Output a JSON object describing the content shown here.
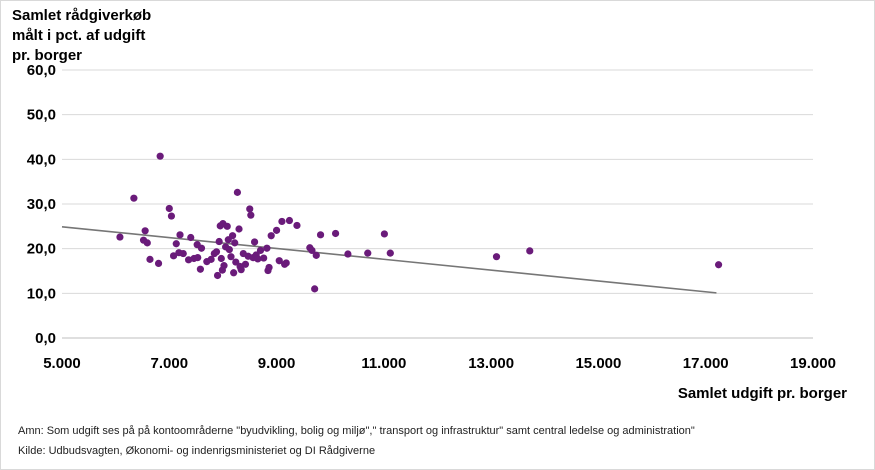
{
  "chart_data": {
    "type": "scatter",
    "ylabel": "Samlet rådgiverkøb\nmålt i pct. af  udgift\npr. borger",
    "xlabel": "Samlet udgift pr. borger",
    "xlim": [
      5000,
      19000
    ],
    "ylim": [
      0,
      60
    ],
    "x_ticks": [
      "5.000",
      "7.000",
      "9.000",
      "11.000",
      "13.000",
      "15.000",
      "17.000",
      "19.000"
    ],
    "y_ticks": [
      "0,0",
      "10,0",
      "20,0",
      "30,0",
      "40,0",
      "50,0",
      "60,0"
    ],
    "grid": "horizontal",
    "marker_color": "#6a1b7a",
    "trend_color": "#767676",
    "trendline": {
      "x": [
        5000,
        17200
      ],
      "y": [
        24.9,
        10.1
      ]
    },
    "points": [
      {
        "x": 6080,
        "y": 22.6
      },
      {
        "x": 6340,
        "y": 31.3
      },
      {
        "x": 6520,
        "y": 21.9
      },
      {
        "x": 6550,
        "y": 24.0
      },
      {
        "x": 6590,
        "y": 21.3
      },
      {
        "x": 6640,
        "y": 17.6
      },
      {
        "x": 6800,
        "y": 16.7
      },
      {
        "x": 6830,
        "y": 40.7
      },
      {
        "x": 7000,
        "y": 29.0
      },
      {
        "x": 7040,
        "y": 27.3
      },
      {
        "x": 7080,
        "y": 18.4
      },
      {
        "x": 7130,
        "y": 21.1
      },
      {
        "x": 7180,
        "y": 19.1
      },
      {
        "x": 7200,
        "y": 23.1
      },
      {
        "x": 7260,
        "y": 18.9
      },
      {
        "x": 7360,
        "y": 17.5
      },
      {
        "x": 7400,
        "y": 22.5
      },
      {
        "x": 7460,
        "y": 17.8
      },
      {
        "x": 7520,
        "y": 20.9
      },
      {
        "x": 7530,
        "y": 18.0
      },
      {
        "x": 7580,
        "y": 15.4
      },
      {
        "x": 7600,
        "y": 20.1
      },
      {
        "x": 7700,
        "y": 17.1
      },
      {
        "x": 7780,
        "y": 17.6
      },
      {
        "x": 7840,
        "y": 18.9
      },
      {
        "x": 7880,
        "y": 19.3
      },
      {
        "x": 7900,
        "y": 14.0
      },
      {
        "x": 7930,
        "y": 21.6
      },
      {
        "x": 7950,
        "y": 25.1
      },
      {
        "x": 7970,
        "y": 17.8
      },
      {
        "x": 7990,
        "y": 15.2
      },
      {
        "x": 8000,
        "y": 25.6
      },
      {
        "x": 8020,
        "y": 16.2
      },
      {
        "x": 8050,
        "y": 20.4
      },
      {
        "x": 8080,
        "y": 25.0
      },
      {
        "x": 8100,
        "y": 22.0
      },
      {
        "x": 8120,
        "y": 19.8
      },
      {
        "x": 8150,
        "y": 18.2
      },
      {
        "x": 8180,
        "y": 22.9
      },
      {
        "x": 8200,
        "y": 14.6
      },
      {
        "x": 8220,
        "y": 21.3
      },
      {
        "x": 8240,
        "y": 17.0
      },
      {
        "x": 8270,
        "y": 32.6
      },
      {
        "x": 8300,
        "y": 24.4
      },
      {
        "x": 8320,
        "y": 16.0
      },
      {
        "x": 8340,
        "y": 15.3
      },
      {
        "x": 8380,
        "y": 18.9
      },
      {
        "x": 8420,
        "y": 16.5
      },
      {
        "x": 8470,
        "y": 18.3
      },
      {
        "x": 8500,
        "y": 28.9
      },
      {
        "x": 8520,
        "y": 27.5
      },
      {
        "x": 8560,
        "y": 18.0
      },
      {
        "x": 8590,
        "y": 21.5
      },
      {
        "x": 8620,
        "y": 18.6
      },
      {
        "x": 8650,
        "y": 17.7
      },
      {
        "x": 8700,
        "y": 19.6
      },
      {
        "x": 8760,
        "y": 17.9
      },
      {
        "x": 8820,
        "y": 20.1
      },
      {
        "x": 8840,
        "y": 15.1
      },
      {
        "x": 8860,
        "y": 15.8
      },
      {
        "x": 8900,
        "y": 22.9
      },
      {
        "x": 9000,
        "y": 24.1
      },
      {
        "x": 9050,
        "y": 17.3
      },
      {
        "x": 9100,
        "y": 26.1
      },
      {
        "x": 9150,
        "y": 16.5
      },
      {
        "x": 9180,
        "y": 16.8
      },
      {
        "x": 9240,
        "y": 26.3
      },
      {
        "x": 9380,
        "y": 25.2
      },
      {
        "x": 9620,
        "y": 20.2
      },
      {
        "x": 9660,
        "y": 19.6
      },
      {
        "x": 9710,
        "y": 11.0
      },
      {
        "x": 9740,
        "y": 18.5
      },
      {
        "x": 9820,
        "y": 23.1
      },
      {
        "x": 10100,
        "y": 23.4
      },
      {
        "x": 10330,
        "y": 18.8
      },
      {
        "x": 10700,
        "y": 19.0
      },
      {
        "x": 11010,
        "y": 23.3
      },
      {
        "x": 11120,
        "y": 19.0
      },
      {
        "x": 13100,
        "y": 18.2
      },
      {
        "x": 13720,
        "y": 19.5
      },
      {
        "x": 17240,
        "y": 16.4
      }
    ]
  },
  "notes": {
    "amn": "Amn: Som udgift ses på på kontoområderne \"byudvikling, bolig og miljø\",\" transport og infrastruktur\" samt central ledelse og administration\"",
    "kilde": "Kilde: Udbudsvagten, Økonomi- og indenrigsministeriet og DI Rådgiverne"
  }
}
